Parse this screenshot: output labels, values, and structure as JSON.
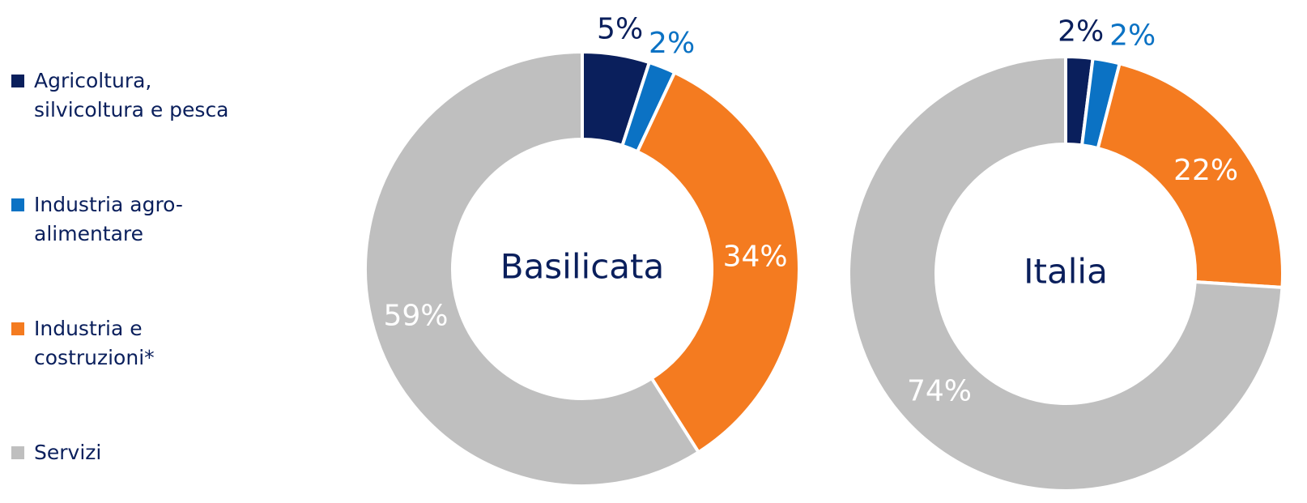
{
  "chart_data": [
    {
      "type": "pie",
      "title": "Basilicata",
      "categories": [
        "Agricoltura, silvicoltura e pesca",
        "Industria agro-alimentare",
        "Industria e costruzioni*",
        "Servizi"
      ],
      "values": [
        5,
        2,
        34,
        59
      ],
      "value_labels": [
        "5%",
        "2%",
        "34%",
        "59%"
      ],
      "colors": [
        "#0a1f5c",
        "#0b72c4",
        "#f47b20",
        "#bfbfbf"
      ],
      "legend": "left"
    },
    {
      "type": "pie",
      "title": "Italia",
      "values": [
        2,
        2,
        22,
        74
      ],
      "value_labels": [
        "2%",
        "2%",
        "22%",
        "74%"
      ],
      "colors": [
        "#0a1f5c",
        "#0b72c4",
        "#f47b20",
        "#bfbfbf"
      ]
    }
  ]
}
